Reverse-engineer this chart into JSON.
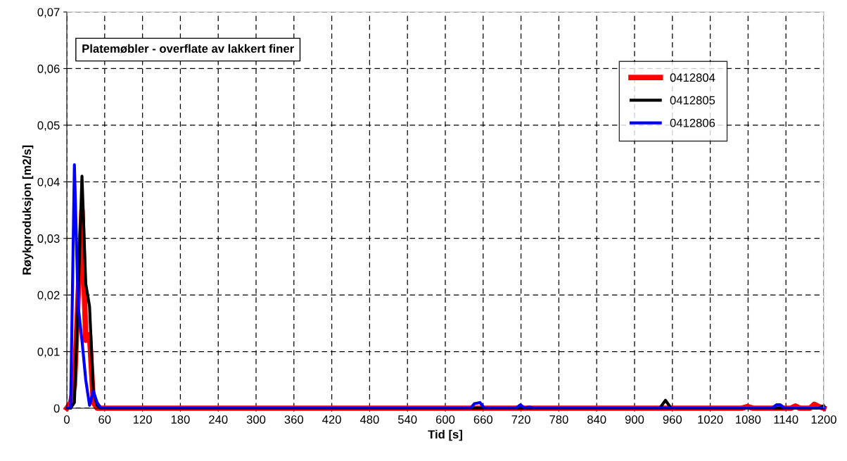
{
  "chart_data": {
    "type": "line",
    "title": "Platemøbler - overflate av lakkert finer",
    "xlabel": "Tid [s]",
    "ylabel": "Røykproduksjon [m2/s]",
    "series": [
      {
        "name": "0412804",
        "color": "#ff0000",
        "x": [
          0,
          6,
          12,
          18,
          24,
          30,
          36,
          42,
          48,
          1070,
          1079,
          1088,
          1148,
          1155,
          1162,
          1178,
          1185,
          1192,
          1200
        ],
        "values": [
          0,
          0.001,
          0.004,
          0.02,
          0.035,
          0.012,
          0.013,
          0.001,
          0,
          0,
          0.0003,
          0,
          0,
          0.0004,
          0,
          0,
          0.0007,
          0.0003,
          0
        ]
      },
      {
        "name": "0412805",
        "color": "#000000",
        "x": [
          0,
          6,
          12,
          18,
          24,
          30,
          36,
          42,
          48,
          54,
          940,
          949,
          958,
          1192,
          1200
        ],
        "values": [
          0,
          0,
          0.001,
          0.02,
          0.041,
          0.022,
          0.018,
          0.003,
          0.0005,
          0,
          0,
          0.0014,
          0,
          0,
          0.0004
        ]
      },
      {
        "name": "0412806",
        "color": "#0000ff",
        "x": [
          0,
          6,
          12,
          18,
          24,
          30,
          36,
          42,
          48,
          54,
          640,
          646,
          655,
          662,
          712,
          719,
          726,
          733,
          740,
          1118,
          1125,
          1131,
          1138,
          1200
        ],
        "values": [
          0,
          0,
          0.043,
          0.018,
          0.012,
          0.005,
          0.0005,
          0.003,
          0.001,
          0,
          0,
          0.0008,
          0.001,
          0,
          0,
          0.0006,
          0,
          0.0002,
          0,
          0,
          0.0006,
          0.0006,
          0,
          0
        ]
      }
    ],
    "xlim": [
      0,
      1200
    ],
    "xticks": [
      0,
      60,
      120,
      180,
      240,
      300,
      360,
      420,
      480,
      540,
      600,
      660,
      720,
      780,
      840,
      900,
      960,
      1020,
      1080,
      1140,
      1200
    ],
    "ylim": [
      0,
      0.07
    ],
    "yticks": [
      {
        "value": 0,
        "label": "0"
      },
      {
        "value": 0.01,
        "label": "0,01"
      },
      {
        "value": 0.02,
        "label": "0,02"
      },
      {
        "value": 0.03,
        "label": "0,03"
      },
      {
        "value": 0.04,
        "label": "0,04"
      },
      {
        "value": 0.05,
        "label": "0,05"
      },
      {
        "value": 0.06,
        "label": "0,06"
      },
      {
        "value": 0.07,
        "label": "0,07"
      }
    ],
    "grid": true,
    "legend": "top right",
    "marker": "none",
    "line_style": "solid"
  }
}
